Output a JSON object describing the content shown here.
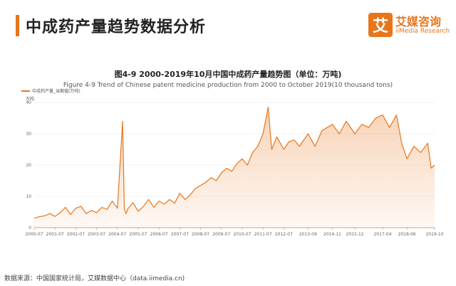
{
  "header": {
    "title": "中成药产量趋势数据分析"
  },
  "logo": {
    "mark": "艾",
    "name_cn": "艾媒咨询",
    "name_en": "iiMedia Research",
    "color": "#e8751c"
  },
  "source": "数据来源：中国国家统计局，艾媒数据中心（data.iimedia.cn)",
  "chart_data": {
    "type": "area",
    "title": "图4-9 2000-2019年10月中国中成药产量趋势图（单位：万吨)",
    "subtitle": "Figure 4-9 Trend of Chinese patent medicine production from 2000 to October 2019(10 thousand tons)",
    "unit_label": "万吨",
    "series_name": "中成药产量_当期值(万吨)",
    "color": "#e8751c",
    "ylim": [
      0,
      40
    ],
    "y_ticks": [
      "0",
      "10",
      "20",
      "30",
      "40"
    ],
    "x_ticks": [
      "2000-07",
      "2001-07",
      "2002-07",
      "2003-07",
      "2004-07",
      "2005-07",
      "2006-07",
      "2007-07",
      "2008-07",
      "2009-07",
      "2010-07",
      "2011-07",
      "2012-07",
      "2013-09",
      "2014-11",
      "2015-12",
      "2017-04",
      "2018-06",
      "2019-10"
    ],
    "grid": true,
    "x": [
      "2000-07",
      "2000-10",
      "2001-01",
      "2001-04",
      "2001-07",
      "2001-10",
      "2002-01",
      "2002-04",
      "2002-07",
      "2002-10",
      "2003-01",
      "2003-04",
      "2003-07",
      "2003-10",
      "2004-01",
      "2004-04",
      "2004-07",
      "2004-10",
      "2004-11",
      "2004-12",
      "2005-01",
      "2005-04",
      "2005-07",
      "2005-10",
      "2006-01",
      "2006-04",
      "2006-07",
      "2006-10",
      "2007-01",
      "2007-04",
      "2007-07",
      "2007-10",
      "2008-01",
      "2008-04",
      "2008-07",
      "2008-10",
      "2009-01",
      "2009-04",
      "2009-07",
      "2009-10",
      "2010-01",
      "2010-04",
      "2010-07",
      "2010-10",
      "2011-01",
      "2011-04",
      "2011-07",
      "2011-10",
      "2011-12",
      "2012-03",
      "2012-07",
      "2012-10",
      "2013-01",
      "2013-04",
      "2013-09",
      "2014-01",
      "2014-05",
      "2014-11",
      "2015-03",
      "2015-07",
      "2015-12",
      "2016-04",
      "2016-08",
      "2016-12",
      "2017-04",
      "2017-08",
      "2017-12",
      "2018-03",
      "2018-06",
      "2018-10",
      "2019-02",
      "2019-06",
      "2019-08",
      "2019-10"
    ],
    "values": [
      3,
      3.5,
      3.8,
      4.5,
      3.6,
      4.8,
      6.5,
      4.2,
      6.2,
      6.8,
      4.5,
      5.5,
      4.8,
      6.5,
      5.8,
      8.5,
      6.2,
      34,
      6,
      4.5,
      6,
      8,
      5.2,
      6.8,
      9,
      6.5,
      8.5,
      7.5,
      9,
      7.8,
      11,
      9,
      10.5,
      12.5,
      13.5,
      14.5,
      16,
      15,
      17.5,
      19,
      18,
      20.5,
      22,
      20,
      24,
      26,
      30,
      38.5,
      25,
      29,
      25,
      27.5,
      28,
      26,
      30,
      26,
      31,
      33,
      30,
      34,
      30,
      33,
      32,
      35,
      36,
      32,
      36,
      27,
      22,
      26,
      24,
      27,
      19,
      20
    ]
  }
}
